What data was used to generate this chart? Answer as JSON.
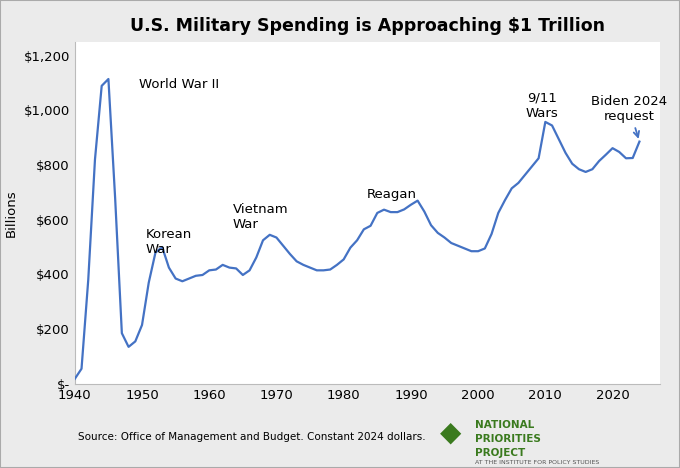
{
  "title": "U.S. Military Spending is Approaching $1 Trillion",
  "ylabel": "Billions",
  "source": "Source: Office of Management and Budget. Constant 2024 dollars.",
  "line_color": "#4472C4",
  "bg_color": "#FFFFFF",
  "ylim": [
    0,
    1250
  ],
  "xlim": [
    1940,
    2027
  ],
  "yticks": [
    0,
    200,
    400,
    600,
    800,
    1000,
    1200
  ],
  "ytick_labels": [
    "$-",
    "$200",
    "$400",
    "$600",
    "$800",
    "$1,000",
    "$1,200"
  ],
  "xticks": [
    1940,
    1950,
    1960,
    1970,
    1980,
    1990,
    2000,
    2010,
    2020
  ],
  "years": [
    1940,
    1941,
    1942,
    1943,
    1944,
    1945,
    1946,
    1947,
    1948,
    1949,
    1950,
    1951,
    1952,
    1953,
    1954,
    1955,
    1956,
    1957,
    1958,
    1959,
    1960,
    1961,
    1962,
    1963,
    1964,
    1965,
    1966,
    1967,
    1968,
    1969,
    1970,
    1971,
    1972,
    1973,
    1974,
    1975,
    1976,
    1977,
    1978,
    1979,
    1980,
    1981,
    1982,
    1983,
    1984,
    1985,
    1986,
    1987,
    1988,
    1989,
    1990,
    1991,
    1992,
    1993,
    1994,
    1995,
    1996,
    1997,
    1998,
    1999,
    2000,
    2001,
    2002,
    2003,
    2004,
    2005,
    2006,
    2007,
    2008,
    2009,
    2010,
    2011,
    2012,
    2013,
    2014,
    2015,
    2016,
    2017,
    2018,
    2019,
    2020,
    2021,
    2022,
    2023,
    2024
  ],
  "values": [
    18,
    55,
    380,
    820,
    1090,
    1115,
    680,
    185,
    135,
    155,
    215,
    370,
    480,
    500,
    425,
    385,
    375,
    385,
    395,
    398,
    415,
    418,
    435,
    425,
    422,
    398,
    415,
    462,
    525,
    545,
    535,
    505,
    475,
    448,
    435,
    425,
    415,
    415,
    418,
    435,
    455,
    498,
    525,
    565,
    578,
    625,
    637,
    628,
    628,
    638,
    655,
    670,
    630,
    580,
    552,
    535,
    515,
    505,
    495,
    485,
    485,
    495,
    548,
    625,
    672,
    715,
    735,
    765,
    795,
    825,
    958,
    945,
    895,
    845,
    805,
    785,
    775,
    785,
    815,
    838,
    862,
    848,
    825,
    826,
    886
  ],
  "npp_logo_color": "#3a7a1e",
  "npp_text": "NATIONAL\nPRIORITIES\nPROJECT",
  "npp_sub": "AT THE INSTITUTE FOR POLICY STUDIES"
}
